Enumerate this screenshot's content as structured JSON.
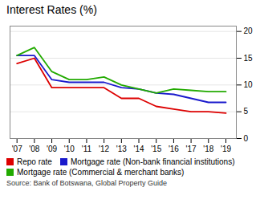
{
  "chart_data": {
    "type": "line",
    "title": "Interest Rates (%)",
    "source": "Source: Bank of Botswana, Global Property Guide",
    "x": [
      2007,
      2008,
      2009,
      2010,
      2011,
      2012,
      2013,
      2014,
      2015,
      2016,
      2017,
      2018,
      2019
    ],
    "series": [
      {
        "name": "Repo rate",
        "color": "#dd0000",
        "values": [
          14.0,
          15.0,
          9.5,
          9.5,
          9.5,
          9.5,
          7.5,
          7.5,
          6.0,
          5.5,
          5.0,
          5.0,
          4.75
        ]
      },
      {
        "name": "Mortgage rate (Non-bank financial institutions)",
        "color": "#1a1acc",
        "values": [
          15.5,
          15.5,
          11.0,
          10.5,
          10.5,
          10.5,
          9.5,
          9.25,
          8.5,
          8.25,
          7.5,
          6.75,
          6.75
        ]
      },
      {
        "name": "Mortgage rate (Commercial & merchant banks)",
        "color": "#22aa00",
        "values": [
          15.5,
          17.0,
          12.5,
          11.0,
          11.0,
          11.5,
          10.0,
          9.25,
          8.5,
          9.25,
          9.0,
          8.75,
          8.75
        ]
      }
    ],
    "xlim": [
      2006.6,
      2019.6
    ],
    "xticks": [
      {
        "value": 2007,
        "label": "'07"
      },
      {
        "value": 2008,
        "label": "'08"
      },
      {
        "value": 2009,
        "label": "'09"
      },
      {
        "value": 2010,
        "label": "'10"
      },
      {
        "value": 2011,
        "label": "'11"
      },
      {
        "value": 2012,
        "label": "'12"
      },
      {
        "value": 2013,
        "label": "'13"
      },
      {
        "value": 2014,
        "label": "'14"
      },
      {
        "value": 2015,
        "label": "'15"
      },
      {
        "value": 2016,
        "label": "'16"
      },
      {
        "value": 2017,
        "label": "'17"
      },
      {
        "value": 2018,
        "label": "'18"
      },
      {
        "value": 2019,
        "label": "'19"
      }
    ],
    "ylim": [
      0,
      21
    ],
    "yticks": [
      0,
      5,
      10,
      15,
      20
    ],
    "grid": true,
    "legend": "bottom"
  }
}
